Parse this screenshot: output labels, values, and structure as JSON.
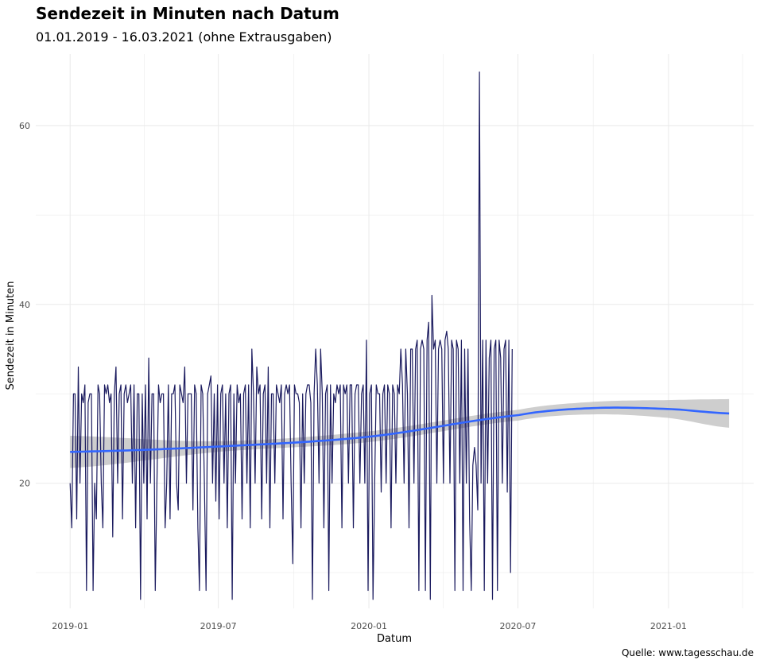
{
  "title": "Sendezeit in Minuten nach Datum",
  "subtitle": "01.01.2019 - 16.03.2021 (ohne Extrausgaben)",
  "caption": "Quelle: www.tagesschau.de",
  "colors": {
    "series": "#1a1a5e",
    "smooth": "#3366ff",
    "band": "#bdbdbd",
    "grid": "#ebebeb"
  },
  "chart_data": {
    "type": "line",
    "xlabel": "Datum",
    "ylabel": "Sendezeit in Minuten",
    "xlim": [
      "2018-11-20",
      "2021-04-15"
    ],
    "ylim": [
      6,
      68
    ],
    "x_ticks": [
      "2019-01-01",
      "2019-07-01",
      "2020-01-01",
      "2020-07-01",
      "2021-01-01"
    ],
    "x_tick_labels": [
      "2019-01",
      "2019-07",
      "2020-01",
      "2020-07",
      "2021-01"
    ],
    "y_ticks": [
      20,
      40,
      60
    ],
    "grid": true,
    "legend": "none",
    "series": [
      {
        "start_date": "2019-01-01",
        "end_date": "2021-03-16",
        "step_days": 2,
        "values": [
          20,
          15,
          30,
          30,
          16,
          33,
          20,
          30,
          29,
          31,
          8,
          29,
          30,
          30,
          8,
          20,
          16,
          31,
          30,
          20,
          15,
          31,
          30,
          31,
          29,
          30,
          14,
          30,
          33,
          20,
          30,
          31,
          16,
          30,
          31,
          29,
          30,
          31,
          20,
          31,
          15,
          30,
          30,
          7,
          30,
          20,
          31,
          16,
          34,
          20,
          30,
          30,
          8,
          20,
          31,
          29,
          30,
          30,
          15,
          20,
          31,
          16,
          30,
          30,
          31,
          20,
          17,
          31,
          30,
          29,
          33,
          20,
          30,
          30,
          30,
          17,
          31,
          30,
          15,
          8,
          31,
          30,
          20,
          8,
          30,
          31,
          32,
          20,
          30,
          18,
          31,
          16,
          30,
          31,
          20,
          30,
          15,
          30,
          31,
          7,
          30,
          20,
          31,
          29,
          30,
          16,
          30,
          31,
          20,
          31,
          15,
          35,
          30,
          20,
          33,
          30,
          31,
          16,
          30,
          31,
          20,
          33,
          15,
          30,
          30,
          20,
          31,
          30,
          29,
          31,
          16,
          30,
          31,
          30,
          31,
          20,
          11,
          31,
          30,
          30,
          29,
          15,
          30,
          20,
          30,
          31,
          31,
          29,
          7,
          30,
          35,
          31,
          20,
          35,
          30,
          15,
          30,
          31,
          8,
          31,
          20,
          30,
          29,
          31,
          30,
          31,
          15,
          31,
          30,
          31,
          20,
          31,
          31,
          15,
          30,
          31,
          31,
          20,
          30,
          31,
          20,
          36,
          8,
          30,
          31,
          7,
          20,
          31,
          30,
          30,
          19,
          30,
          31,
          20,
          31,
          30,
          15,
          31,
          30,
          20,
          31,
          30,
          35,
          31,
          20,
          35,
          30,
          15,
          35,
          35,
          20,
          35,
          36,
          8,
          35,
          36,
          35,
          8,
          36,
          38,
          7,
          41,
          35,
          36,
          20,
          35,
          36,
          35,
          20,
          36,
          37,
          35,
          20,
          36,
          35,
          8,
          36,
          35,
          20,
          36,
          8,
          35,
          20,
          35,
          16,
          8,
          22,
          24,
          22,
          17,
          66,
          20,
          36,
          8,
          36,
          20,
          34,
          36,
          7,
          35,
          36,
          8,
          36,
          34,
          20,
          35,
          36,
          19,
          36,
          10,
          35
        ]
      },
      {
        "name": "",
        "x": [
          "2019-01-01",
          "2019-07-01",
          "2020-01-01",
          "2020-07-01",
          "2020-10-01",
          "2021-01-01",
          "2021-03-16"
        ],
        "values": [
          23.5,
          24.1,
          25.2,
          27.6,
          28.4,
          28.3,
          27.8
        ],
        "band_halfwidth": [
          1.8,
          0.6,
          0.6,
          0.6,
          0.7,
          1.0,
          1.6
        ]
      }
    ]
  }
}
